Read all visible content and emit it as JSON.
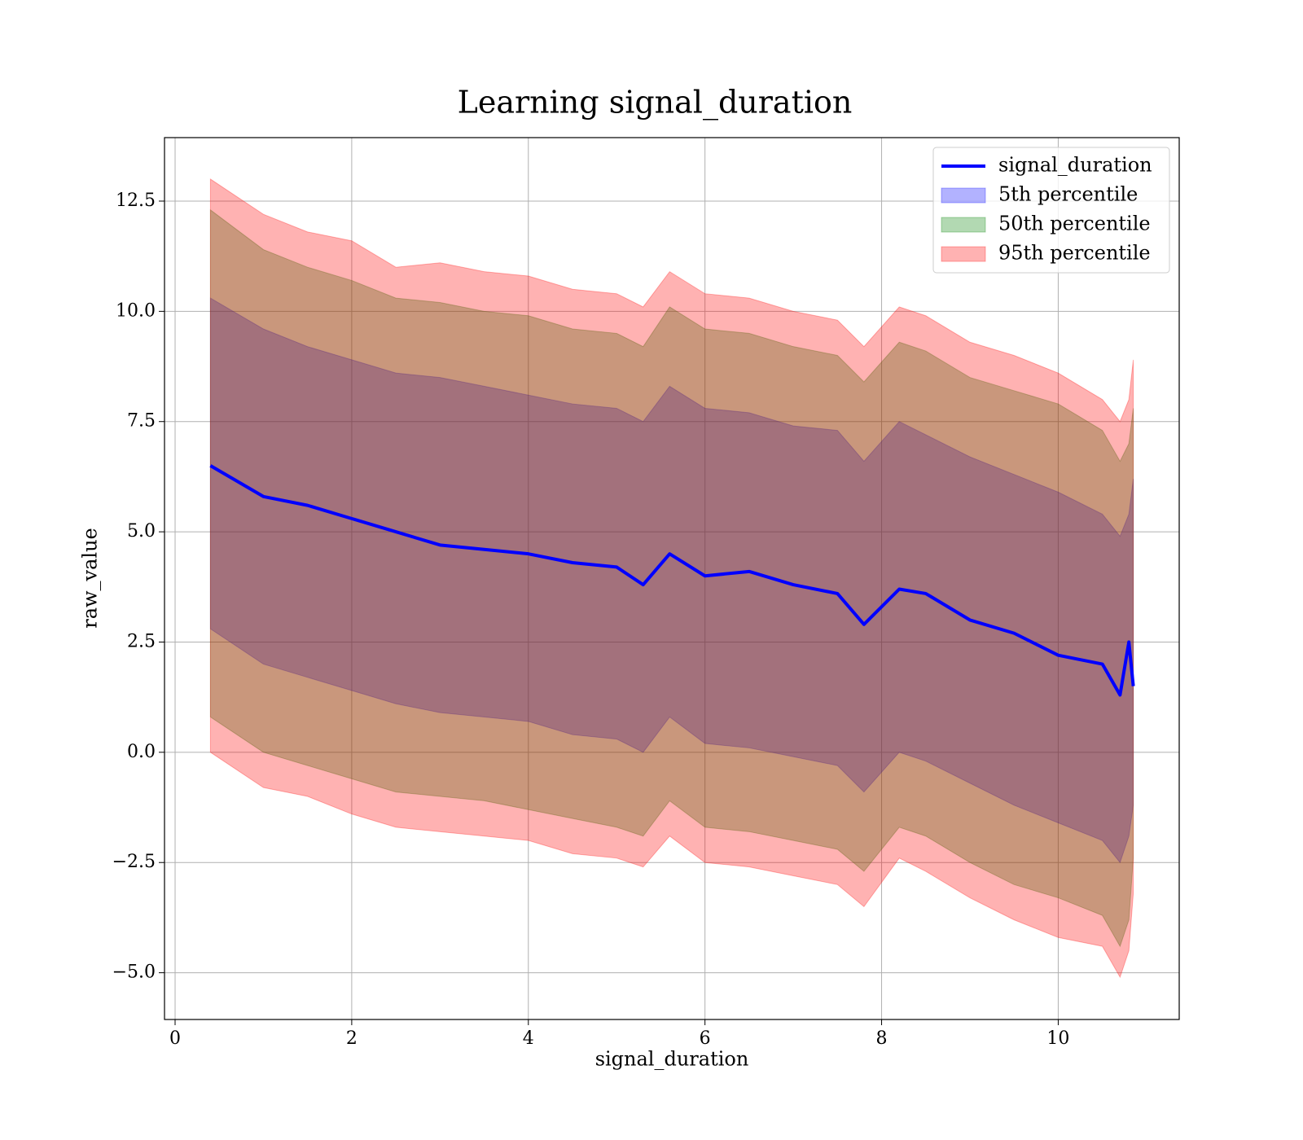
{
  "chart_data": {
    "type": "line",
    "title": "Learning signal_duration",
    "x_label": "signal_duration",
    "y_label": "raw_value",
    "x": [
      0.4,
      1,
      1.5,
      2,
      2.5,
      3,
      3.5,
      4,
      4.5,
      5,
      5.3,
      5.6,
      6,
      6.5,
      7,
      7.5,
      7.8,
      8.2,
      8.5,
      9,
      9.5,
      10,
      10.5,
      10.7,
      10.8,
      10.85
    ],
    "series": [
      {
        "name": "signal_duration",
        "color": "#0000ff",
        "values": [
          6.5,
          5.8,
          5.6,
          5.3,
          5.0,
          4.7,
          4.6,
          4.5,
          4.3,
          4.2,
          3.8,
          4.5,
          4.0,
          4.1,
          3.8,
          3.6,
          2.9,
          3.7,
          3.6,
          3.0,
          2.7,
          2.2,
          2.0,
          1.3,
          2.5,
          1.5
        ]
      }
    ],
    "bands": [
      {
        "name": "5th percentile",
        "color": "#0000ff",
        "lower": [
          2.8,
          2.0,
          1.7,
          1.4,
          1.1,
          0.9,
          0.8,
          0.7,
          0.4,
          0.3,
          0.0,
          0.8,
          0.2,
          0.1,
          -0.1,
          -0.3,
          -0.9,
          0.0,
          -0.2,
          -0.7,
          -1.2,
          -1.6,
          -2.0,
          -2.5,
          -1.9,
          -1.2
        ],
        "upper": [
          10.3,
          9.6,
          9.2,
          8.9,
          8.6,
          8.5,
          8.3,
          8.1,
          7.9,
          7.8,
          7.5,
          8.3,
          7.8,
          7.7,
          7.4,
          7.3,
          6.6,
          7.5,
          7.2,
          6.7,
          6.3,
          5.9,
          5.4,
          4.9,
          5.4,
          6.2
        ]
      },
      {
        "name": "50th percentile",
        "color": "#008000",
        "lower": [
          0.8,
          0.0,
          -0.3,
          -0.6,
          -0.9,
          -1.0,
          -1.1,
          -1.3,
          -1.5,
          -1.7,
          -1.9,
          -1.1,
          -1.7,
          -1.8,
          -2.0,
          -2.2,
          -2.7,
          -1.7,
          -1.9,
          -2.5,
          -3.0,
          -3.3,
          -3.7,
          -4.4,
          -3.8,
          -2.4
        ],
        "upper": [
          12.3,
          11.4,
          11.0,
          10.7,
          10.3,
          10.2,
          10.0,
          9.9,
          9.6,
          9.5,
          9.2,
          10.1,
          9.6,
          9.5,
          9.2,
          9.0,
          8.4,
          9.3,
          9.1,
          8.5,
          8.2,
          7.9,
          7.3,
          6.6,
          7.0,
          7.8
        ]
      },
      {
        "name": "95th percentile",
        "color": "#ff0000",
        "lower": [
          0.0,
          -0.8,
          -1.0,
          -1.4,
          -1.7,
          -1.8,
          -1.9,
          -2.0,
          -2.3,
          -2.4,
          -2.6,
          -1.9,
          -2.5,
          -2.6,
          -2.8,
          -3.0,
          -3.5,
          -2.4,
          -2.7,
          -3.3,
          -3.8,
          -4.2,
          -4.4,
          -5.1,
          -4.5,
          -3.2
        ],
        "upper": [
          13.0,
          12.2,
          11.8,
          11.6,
          11.0,
          11.1,
          10.9,
          10.8,
          10.5,
          10.4,
          10.1,
          10.9,
          10.4,
          10.3,
          10.0,
          9.8,
          9.2,
          10.1,
          9.9,
          9.3,
          9.0,
          8.6,
          8.0,
          7.5,
          8.0,
          8.9
        ]
      }
    ],
    "xlim": [
      -0.12,
      11.37
    ],
    "ylim": [
      -6.06,
      13.94
    ],
    "xticks": [
      0,
      2,
      4,
      6,
      8,
      10
    ],
    "yticks": [
      {
        "value": -5,
        "label": "−5.0"
      },
      {
        "value": -2.5,
        "label": "−2.5"
      },
      {
        "value": 0,
        "label": "0.0"
      },
      2.5,
      {
        "value": 5,
        "label": "5.0"
      },
      7.5,
      {
        "value": 10,
        "label": "10.0"
      },
      12.5
    ],
    "grid": true,
    "legend": "upper right"
  }
}
